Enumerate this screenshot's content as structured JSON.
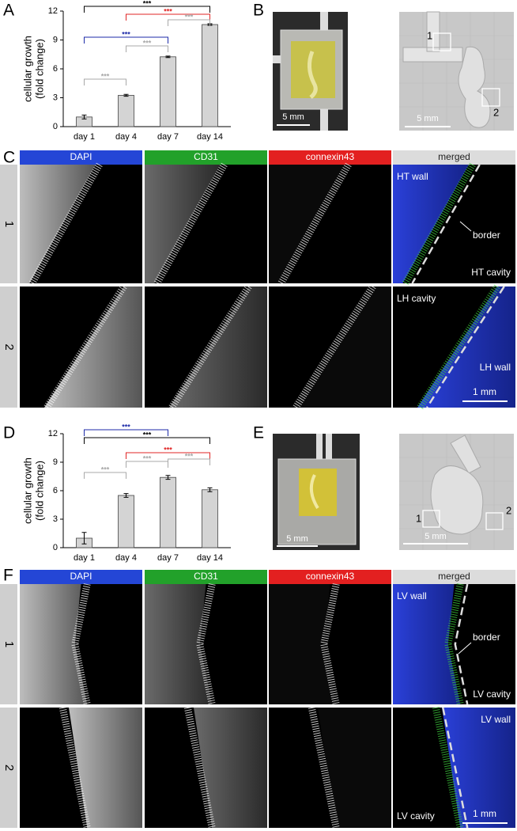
{
  "panels": [
    "A",
    "B",
    "C",
    "D",
    "E",
    "F"
  ],
  "chart_data": [
    {
      "type": "bar",
      "ylabel_lines": [
        "cellular growth",
        "(fold change)"
      ],
      "categories": [
        "day 1",
        "day 4",
        "day 7",
        "day 14"
      ],
      "values": [
        1.0,
        3.25,
        7.25,
        10.6
      ],
      "errors": [
        0.2,
        0.1,
        0.08,
        0.08
      ],
      "color": "#d4d4d4",
      "ylim": [
        0,
        12
      ],
      "yticks": [
        0,
        3,
        6,
        9,
        12
      ],
      "annotations": [
        {
          "label": "***",
          "from": "day 1",
          "to": "day 14",
          "color": "#000000"
        },
        {
          "label": "***",
          "from": "day 4",
          "to": "day 14",
          "color": "#e02424"
        },
        {
          "label": "***",
          "from": "day 1",
          "to": "day 7",
          "color": "#1c2aa8"
        },
        {
          "label": "***",
          "from": "day 7",
          "to": "day 14",
          "color": "#a8a8a8"
        },
        {
          "label": "***",
          "from": "day 4",
          "to": "day 7",
          "color": "#a8a8a8"
        },
        {
          "label": "***",
          "from": "day 1",
          "to": "day 4",
          "color": "#a8a8a8"
        }
      ]
    },
    {
      "type": "bar",
      "ylabel_lines": [
        "cellular growth",
        "(fold change)"
      ],
      "categories": [
        "day 1",
        "day 4",
        "day 7",
        "day 14"
      ],
      "values": [
        1.0,
        5.5,
        7.4,
        6.1
      ],
      "errors": [
        0.6,
        0.2,
        0.2,
        0.2
      ],
      "color": "#d4d4d4",
      "ylim": [
        0,
        12
      ],
      "yticks": [
        0,
        3,
        6,
        9,
        12
      ],
      "annotations": [
        {
          "label": "***",
          "from": "day 1",
          "to": "day 7",
          "color": "#1c2aa8"
        },
        {
          "label": "***",
          "from": "day 1",
          "to": "day 14",
          "color": "#000000"
        },
        {
          "label": "***",
          "from": "day 4",
          "to": "day 14",
          "color": "#e02424"
        },
        {
          "label": "***",
          "from": "day 4",
          "to": "day 7",
          "color": "#a8a8a8"
        },
        {
          "label": "***",
          "from": "day 7",
          "to": "day 14",
          "color": "#a8a8a8"
        },
        {
          "label": "***",
          "from": "day 1",
          "to": "day 4",
          "color": "#a8a8a8"
        }
      ]
    }
  ],
  "figure_B": {
    "scale_bars": [
      "5 mm",
      "5 mm"
    ],
    "regions": [
      "1",
      "2"
    ]
  },
  "figure_C": {
    "columns": [
      "DAPI",
      "CD31",
      "connexin43",
      "merged"
    ],
    "rows": [
      "1",
      "2"
    ],
    "labels": [
      "HT wall",
      "border",
      "HT cavity",
      "LH cavity",
      "LH wall"
    ],
    "scale_bar": "1 mm"
  },
  "figure_E": {
    "scale_bars": [
      "5 mm",
      "5 mm"
    ],
    "regions": [
      "1",
      "2"
    ]
  },
  "figure_F": {
    "columns": [
      "DAPI",
      "CD31",
      "connexin43",
      "merged"
    ],
    "rows": [
      "1",
      "2"
    ],
    "labels": [
      "LV wall",
      "border",
      "LV cavity",
      "LV wall",
      "LV cavity"
    ],
    "scale_bar": "1 mm"
  }
}
